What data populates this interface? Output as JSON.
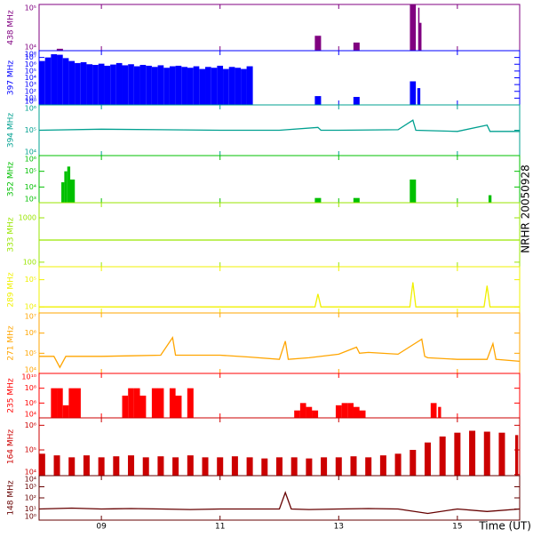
{
  "side_label": "NRHR 20050928",
  "chart_data": [
    {
      "type": "spike",
      "title": "438 MHz",
      "color": "#800080",
      "log": true,
      "ylim": [
        10000,
        100000
      ],
      "yticks": [
        {
          "value": 10000,
          "label": "10⁴"
        },
        {
          "value": 100000,
          "label": "10⁵"
        }
      ],
      "xlim": [
        7.95,
        16.05
      ],
      "xticks": [
        9,
        11,
        13,
        15
      ],
      "x": [
        8.3,
        12.65,
        13.3,
        14.22,
        14.25,
        14.35,
        14.37
      ],
      "values": [
        11000,
        21000,
        15000,
        60000,
        100000,
        85000,
        40000
      ]
    },
    {
      "type": "spike",
      "title": "397 MHz",
      "color": "#0000ff",
      "log": true,
      "ylim": [
        1,
        100000000
      ],
      "yticks": [
        {
          "value": 1,
          "label": "10⁰"
        },
        {
          "value": 10,
          "label": "10¹"
        },
        {
          "value": 100,
          "label": "10²"
        },
        {
          "value": 1000,
          "label": "10³"
        },
        {
          "value": 10000,
          "label": "10⁴"
        },
        {
          "value": 100000,
          "label": "10⁵"
        },
        {
          "value": 1000000,
          "label": "10⁶"
        },
        {
          "value": 10000000,
          "label": "10⁷"
        },
        {
          "value": 100000000,
          "label": "10⁸"
        }
      ],
      "xlim": [
        7.95,
        16.05
      ],
      "xticks": [
        9,
        11,
        13,
        15
      ],
      "x": [
        8.0,
        8.1,
        8.2,
        8.3,
        8.4,
        8.5,
        8.6,
        8.7,
        8.8,
        8.9,
        9.0,
        9.1,
        9.2,
        9.3,
        9.4,
        9.5,
        9.6,
        9.7,
        9.8,
        9.9,
        10.0,
        10.1,
        10.2,
        10.3,
        10.4,
        10.5,
        10.6,
        10.7,
        10.8,
        10.9,
        11.0,
        11.1,
        11.2,
        11.3,
        11.4,
        11.5,
        12.65,
        13.3,
        14.25,
        14.35
      ],
      "values": [
        3000000.0,
        10000000.0,
        30000000.0,
        25000000.0,
        8000000.0,
        3000000.0,
        1500000.0,
        2000000.0,
        1000000.0,
        800000.0,
        1200000.0,
        600000.0,
        900000.0,
        1500000.0,
        700000.0,
        1000000.0,
        500000.0,
        800000.0,
        600000.0,
        400000.0,
        700000.0,
        300000.0,
        500000.0,
        600000.0,
        400000.0,
        300000.0,
        500000.0,
        200000.0,
        400000.0,
        300000.0,
        600000.0,
        200000.0,
        400000.0,
        300000.0,
        200000.0,
        500000.0,
        20,
        15,
        3000,
        300
      ]
    },
    {
      "type": "line",
      "title": "394 MHz",
      "color": "#00a090",
      "log": true,
      "ylim": [
        10000,
        1000000
      ],
      "yticks": [
        {
          "value": 10000,
          "label": "10⁴"
        },
        {
          "value": 100000,
          "label": "10⁵"
        },
        {
          "value": 1000000,
          "label": "10⁶"
        }
      ],
      "xlim": [
        7.95,
        16.05
      ],
      "xticks": [
        9,
        11,
        13,
        15
      ],
      "x": [
        7.95,
        9.0,
        10.0,
        11.0,
        12.0,
        12.65,
        12.7,
        13.0,
        14.0,
        14.25,
        14.3,
        15.0,
        15.5,
        15.55,
        16.05
      ],
      "values": [
        100000.0,
        110000.0,
        105000.0,
        100000.0,
        100000.0,
        130000.0,
        100000.0,
        100000.0,
        105000.0,
        250000.0,
        100000.0,
        90000.0,
        160000.0,
        90000.0,
        90000.0
      ]
    },
    {
      "type": "spike",
      "title": "352 MHz",
      "color": "#00c000",
      "log": true,
      "ylim": [
        1000,
        1000000
      ],
      "yticks": [
        {
          "value": 1000,
          "label": "10³"
        },
        {
          "value": 10000,
          "label": "10⁴"
        },
        {
          "value": 100000,
          "label": "10⁵"
        },
        {
          "value": 1000000,
          "label": "10⁶"
        }
      ],
      "xlim": [
        7.95,
        16.05
      ],
      "xticks": [
        9,
        11,
        13,
        15
      ],
      "x": [
        8.35,
        8.4,
        8.45,
        8.5,
        12.65,
        13.3,
        14.25,
        15.55
      ],
      "values": [
        20000.0,
        100000.0,
        200000.0,
        30000.0,
        2000,
        2000,
        30000.0,
        3000
      ]
    },
    {
      "type": "line",
      "title": "333 MHz",
      "color": "#99e600",
      "log": true,
      "ylim": [
        79,
        2190
      ],
      "yticks": [
        100,
        1000
      ],
      "xlim": [
        7.95,
        16.05
      ],
      "xticks": [
        9,
        11,
        13,
        15
      ],
      "x": [
        7.95,
        16.05
      ],
      "values": [
        316,
        316
      ]
    },
    {
      "type": "line",
      "title": "289 MHz",
      "color": "#f0f000",
      "log": true,
      "ylim": [
        6000,
        300000
      ],
      "yticks": [
        {
          "value": 10000,
          "label": "10⁴"
        },
        {
          "value": 100000,
          "label": "10⁵"
        }
      ],
      "xlim": [
        7.95,
        16.05
      ],
      "xticks": [
        9,
        11,
        13,
        15
      ],
      "x": [
        7.95,
        12.6,
        12.65,
        12.7,
        14.2,
        14.25,
        14.3,
        15.45,
        15.5,
        15.55,
        16.05
      ],
      "values": [
        10000.0,
        10000.0,
        30000.0,
        10000.0,
        10000.0,
        80000.0,
        10000.0,
        10000.0,
        60000.0,
        10000.0,
        10000.0
      ]
    },
    {
      "type": "line",
      "title": "271 MHz",
      "color": "#ffa500",
      "log": true,
      "ylim": [
        10000,
        10000000
      ],
      "yticks": [
        {
          "value": 10000,
          "label": "10⁴"
        },
        {
          "value": 100000,
          "label": "10⁵"
        },
        {
          "value": 1000000,
          "label": "10⁶"
        },
        {
          "value": 10000000,
          "label": "10⁷"
        }
      ],
      "xlim": [
        7.95,
        16.05
      ],
      "xticks": [
        9,
        11,
        13,
        15
      ],
      "x": [
        7.95,
        8.2,
        8.3,
        8.4,
        9.0,
        9.5,
        10.0,
        10.2,
        10.25,
        10.5,
        11.0,
        11.5,
        12.0,
        12.1,
        12.15,
        12.5,
        13.0,
        13.3,
        13.35,
        13.5,
        14.0,
        14.4,
        14.45,
        14.5,
        15.0,
        15.5,
        15.6,
        15.65,
        16.05
      ],
      "values": [
        70000.0,
        70000.0,
        20000.0,
        70000.0,
        70000.0,
        75000.0,
        80000.0,
        600000.0,
        80000.0,
        80000.0,
        80000.0,
        65000.0,
        50000.0,
        400000.0,
        50000.0,
        60000.0,
        90000.0,
        200000.0,
        100000.0,
        110000.0,
        90000.0,
        500000.0,
        70000.0,
        60000.0,
        50000.0,
        50000.0,
        300000.0,
        50000.0,
        40000.0
      ]
    },
    {
      "type": "spike",
      "title": "235 MHz",
      "color": "#ff0000",
      "log": true,
      "ylim": [
        10000,
        10000000000
      ],
      "yticks": [
        {
          "value": 10000,
          "label": "10⁴"
        },
        {
          "value": 1000000,
          "label": "10⁶"
        },
        {
          "value": 100000000,
          "label": "10⁸"
        },
        {
          "value": 10000000000,
          "label": "10¹⁰"
        }
      ],
      "xlim": [
        7.95,
        16.05
      ],
      "xticks": [
        9,
        11,
        13,
        15
      ],
      "x": [
        8.2,
        8.3,
        8.4,
        8.5,
        8.6,
        9.4,
        9.5,
        9.6,
        9.7,
        9.9,
        10.0,
        10.2,
        10.3,
        10.5,
        12.3,
        12.4,
        12.5,
        12.6,
        13.0,
        13.1,
        13.2,
        13.3,
        13.4,
        14.6,
        14.7
      ],
      "values": [
        100000000.0,
        100000000.0,
        500000.0,
        100000000.0,
        100000000.0,
        10000000.0,
        100000000.0,
        100000000.0,
        10000000.0,
        100000000.0,
        100000000.0,
        100000000.0,
        10000000.0,
        100000000.0,
        100000.0,
        1000000.0,
        300000.0,
        100000.0,
        500000.0,
        1000000.0,
        1000000.0,
        300000.0,
        100000.0,
        1000000.0,
        300000.0
      ]
    },
    {
      "type": "spike",
      "title": "164 MHz",
      "color": "#cc0000",
      "log": true,
      "ylim": [
        9000,
        2000000
      ],
      "yticks": [
        {
          "value": 10000,
          "label": "10⁴"
        },
        {
          "value": 100000,
          "label": "10⁵"
        },
        {
          "value": 1000000,
          "label": "10⁶"
        }
      ],
      "xlim": [
        7.95,
        16.05
      ],
      "xticks": [
        9,
        11,
        13,
        15
      ],
      "x": [
        8.0,
        8.25,
        8.5,
        8.75,
        9.0,
        9.25,
        9.5,
        9.75,
        10.0,
        10.25,
        10.5,
        10.75,
        11.0,
        11.25,
        11.5,
        11.75,
        12.0,
        12.25,
        12.5,
        12.75,
        13.0,
        13.25,
        13.5,
        13.75,
        14.0,
        14.25,
        14.5,
        14.75,
        15.0,
        15.25,
        15.5,
        15.75,
        16.0
      ],
      "values": [
        70000.0,
        60000.0,
        50000.0,
        60000.0,
        50000.0,
        55000.0,
        60000.0,
        50000.0,
        55000.0,
        50000.0,
        60000.0,
        50000.0,
        50000.0,
        55000.0,
        50000.0,
        45000.0,
        50000.0,
        50000.0,
        45000.0,
        50000.0,
        50000.0,
        55000.0,
        50000.0,
        60000.0,
        70000.0,
        100000.0,
        200000.0,
        350000.0,
        500000.0,
        600000.0,
        550000.0,
        500000.0,
        400000.0
      ]
    },
    {
      "type": "line",
      "title": "148 MHz",
      "color": "#660000",
      "log": true,
      "ylim": [
        1,
        10000
      ],
      "yticks": [
        {
          "value": 1,
          "label": "10⁰"
        },
        {
          "value": 10,
          "label": "10¹"
        },
        {
          "value": 100,
          "label": "10²"
        },
        {
          "value": 1000,
          "label": "10³"
        },
        {
          "value": 10000,
          "label": "10⁴"
        }
      ],
      "xlim": [
        7.95,
        16.05
      ],
      "xticks": [
        {
          "value": 9,
          "label": "09"
        },
        {
          "value": 11,
          "label": "11"
        },
        {
          "value": 13,
          "label": "13"
        },
        {
          "value": 15,
          "label": "15"
        }
      ],
      "x_label": "Time (UT)",
      "x": [
        7.95,
        8.5,
        9.0,
        9.5,
        10.0,
        10.5,
        11.0,
        11.5,
        12.0,
        12.1,
        12.2,
        12.5,
        13.0,
        13.5,
        14.0,
        14.5,
        15.0,
        15.5,
        16.05
      ],
      "values": [
        10,
        12,
        10,
        11,
        10,
        9,
        10,
        10,
        10,
        300,
        10,
        9,
        10,
        11,
        10,
        4,
        10,
        6,
        10
      ]
    }
  ]
}
